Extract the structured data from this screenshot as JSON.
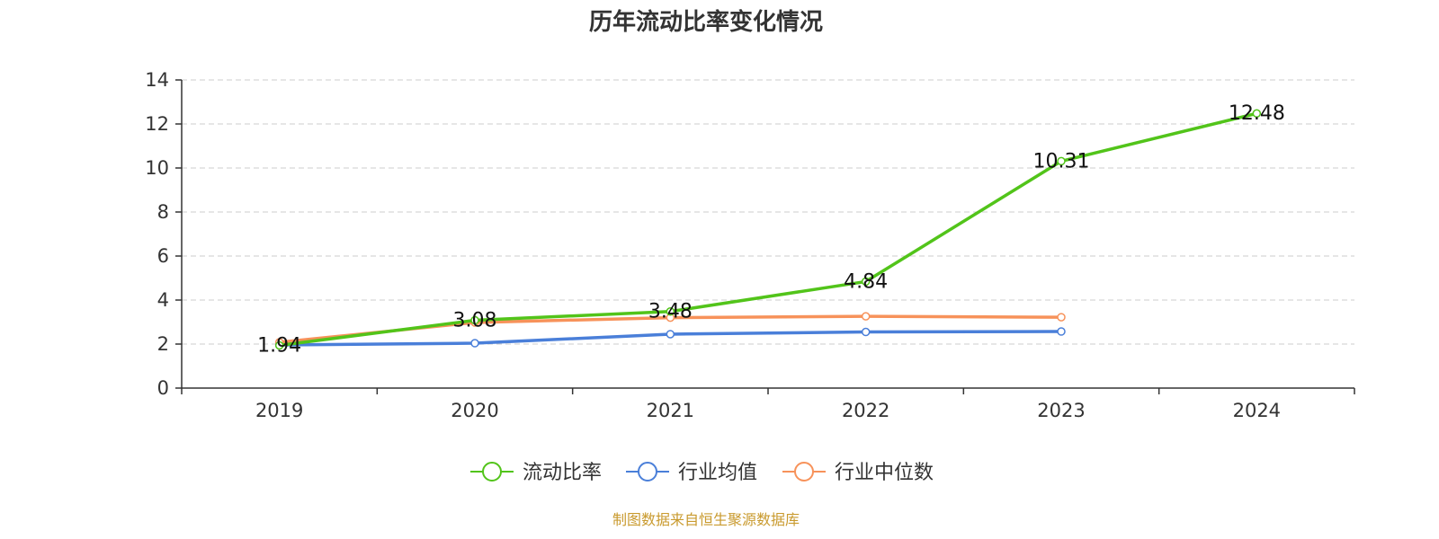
{
  "chart_data": {
    "type": "line",
    "title": "历年流动比率变化情况",
    "categories": [
      "2019",
      "2020",
      "2021",
      "2022",
      "2023",
      "2024"
    ],
    "ylim": [
      0,
      14
    ],
    "yticks": [
      0,
      2,
      4,
      6,
      8,
      10,
      12,
      14
    ],
    "grid": true,
    "legend_position": "bottom",
    "series": [
      {
        "name": "流动比率",
        "color": "#52c41a",
        "values": [
          1.94,
          3.08,
          3.48,
          4.84,
          10.31,
          12.48
        ],
        "labels": [
          "1.94",
          "3.08",
          "3.48",
          "4.84",
          "10.31",
          "12.48"
        ]
      },
      {
        "name": "行业均值",
        "color": "#4a7fd9",
        "values": [
          1.96,
          2.04,
          2.45,
          2.55,
          2.57,
          null
        ]
      },
      {
        "name": "行业中位数",
        "color": "#f7925a",
        "values": [
          2.08,
          2.98,
          3.2,
          3.26,
          3.22,
          null
        ]
      }
    ]
  },
  "source": {
    "text": "制图数据来自恒生聚源数据库",
    "color": "#c99a2e"
  }
}
